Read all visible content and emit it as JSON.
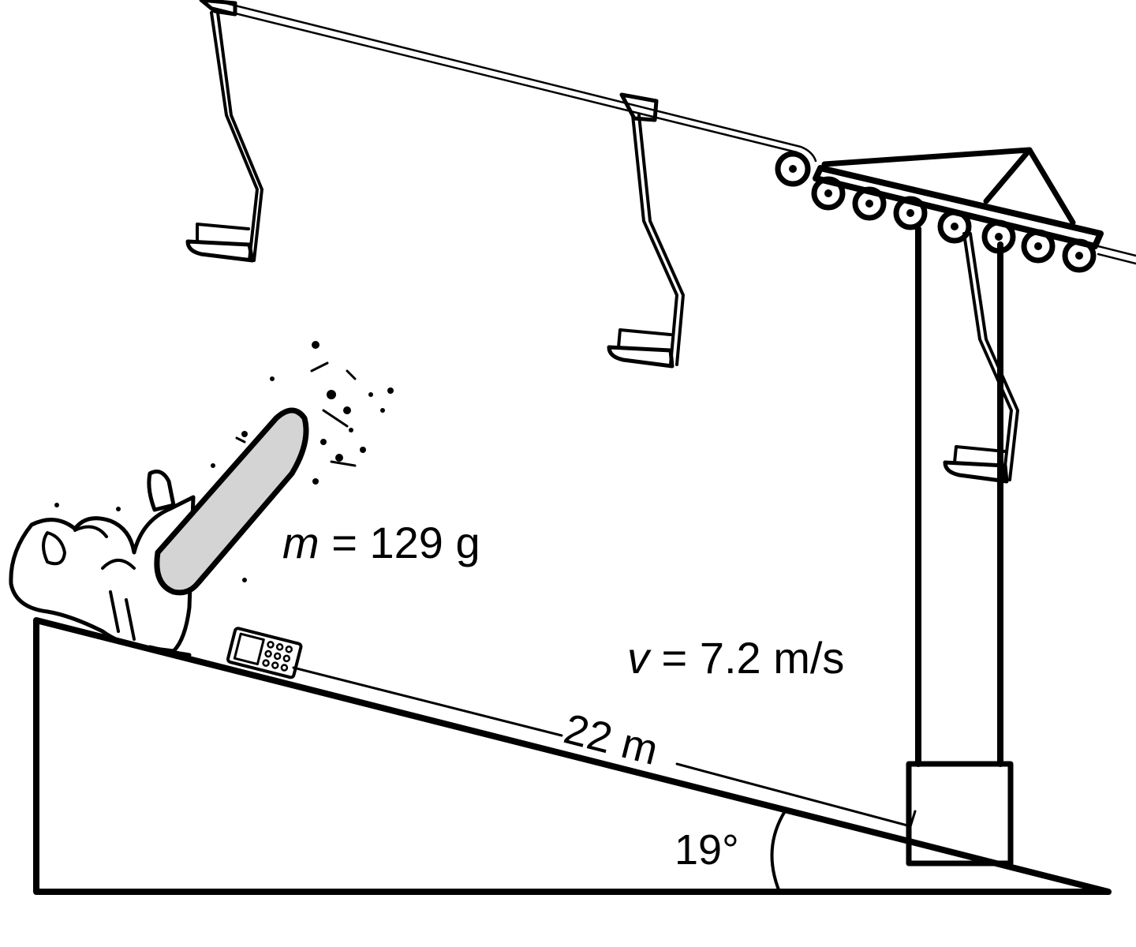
{
  "labels": {
    "mass_symbol": "m",
    "mass_value": " = 129 g",
    "velocity_symbol": "v",
    "velocity_value": " = 7.2 m/s",
    "distance": "22 m",
    "angle": "19°"
  },
  "colors": {
    "ink": "#000000",
    "snowboard": "#d4d4d4",
    "background": "#ffffff"
  },
  "icons": [
    "phone-icon",
    "snowboarder-figure",
    "chairlift-tower"
  ]
}
